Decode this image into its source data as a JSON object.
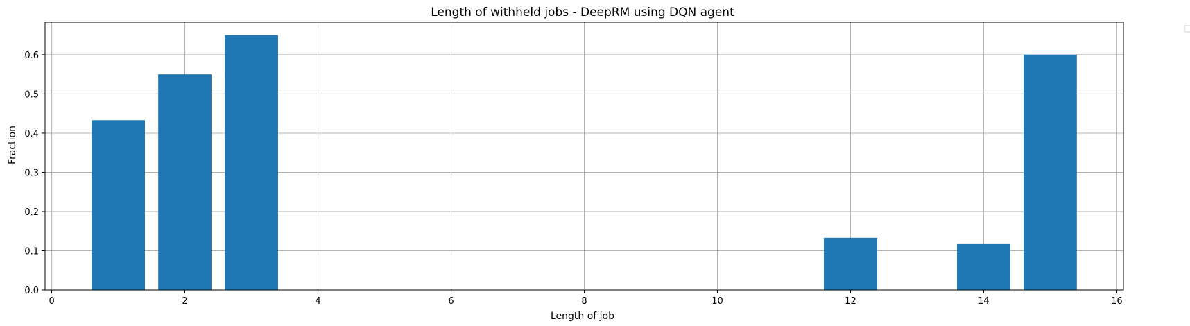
{
  "chart_data": {
    "type": "bar",
    "title": "Length  of withheld jobs - DeepRM using DQN agent",
    "xlabel": "Length of job",
    "ylabel": "Fraction",
    "x": [
      1,
      2,
      3,
      12,
      14,
      15
    ],
    "values": [
      0.433,
      0.55,
      0.65,
      0.133,
      0.117,
      0.6
    ],
    "bar_width": 0.8,
    "xlim": [
      -0.1,
      16.1
    ],
    "ylim": [
      0,
      0.683
    ],
    "xticks": [
      0,
      2,
      4,
      6,
      8,
      10,
      12,
      14,
      16
    ],
    "yticks": [
      0.0,
      0.1,
      0.2,
      0.3,
      0.4,
      0.5,
      0.6
    ],
    "ytick_labels": [
      "0.0",
      "0.1",
      "0.2",
      "0.3",
      "0.4",
      "0.5",
      "0.6"
    ],
    "grid": true,
    "legend": {
      "placement": "outside-right",
      "entries": []
    },
    "colors": {
      "bar": "#1f77b4",
      "grid": "#b0b0b0",
      "axis": "#000000"
    }
  }
}
